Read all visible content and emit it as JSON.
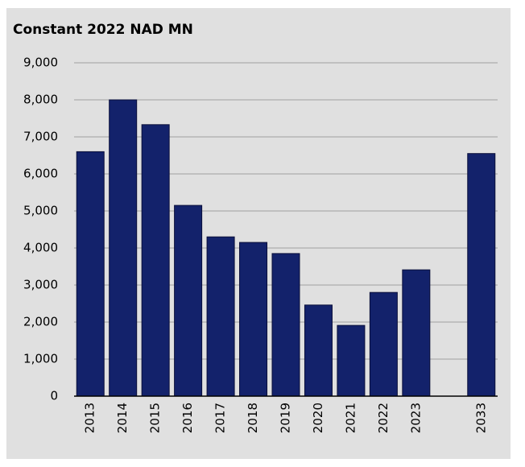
{
  "chart_data": {
    "type": "bar",
    "title": "Constant 2022 NAD MN",
    "categories": [
      "2013",
      "2014",
      "2015",
      "2016",
      "2017",
      "2018",
      "2019",
      "2020",
      "2021",
      "2022",
      "2023",
      null,
      "2033"
    ],
    "values": [
      6600,
      8000,
      7330,
      5150,
      4300,
      4150,
      3850,
      2460,
      1910,
      2800,
      3410,
      null,
      6550
    ],
    "color": "#13226b",
    "ylim": [
      0,
      9000
    ],
    "yticks": [
      0,
      {
        "value": 1000,
        "label": "1,000"
      },
      {
        "value": 2000,
        "label": "2,000"
      },
      {
        "value": 3000,
        "label": "3,000"
      },
      {
        "value": 4000,
        "label": "4,000"
      },
      {
        "value": 5000,
        "label": "5,000"
      },
      {
        "value": 6000,
        "label": "6,000"
      },
      {
        "value": 7000,
        "label": "7,000"
      },
      {
        "value": 8000,
        "label": "8,000"
      },
      {
        "value": 9000,
        "label": "9,000"
      }
    ],
    "grid": true
  }
}
